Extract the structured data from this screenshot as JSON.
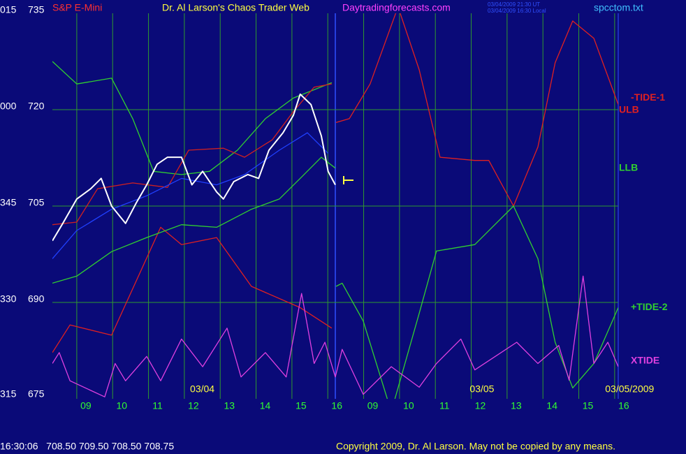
{
  "chart_data": {
    "type": "line",
    "title": "S&P E-Mini",
    "subtitle": "Dr. Al Larson's Chaos Trader Web",
    "site": "Daytradingforecasts.com",
    "timestamps": [
      "03/04/2009 21:30 UT",
      "03/04/2009 16:30 Local"
    ],
    "filename": "spcctom.txt",
    "date_labels": [
      {
        "value": 3.5,
        "label": "03/04"
      },
      {
        "value": 11.3,
        "label": "03/05"
      },
      {
        "value": 16.1,
        "label": "03/05/2009"
      }
    ],
    "status": "16:30:06   708.50 709.50 708.50 708.75",
    "copyright": "Copyright 2009, Dr. Al Larson. May not be copied by any means.",
    "ylim": [
      675,
      735
    ],
    "yticks": [
      735,
      720,
      705,
      690,
      675
    ],
    "yticks_outer": [
      "015",
      "000",
      "345",
      "330",
      "315"
    ],
    "xlim": [
      -0.68,
      15.1
    ],
    "xticks": [
      {
        "value": 0,
        "label": "09"
      },
      {
        "value": 1,
        "label": "10"
      },
      {
        "value": 2,
        "label": "11"
      },
      {
        "value": 3,
        "label": "12"
      },
      {
        "value": 4,
        "label": "13"
      },
      {
        "value": 5,
        "label": "14"
      },
      {
        "value": 6,
        "label": "15"
      },
      {
        "value": 7,
        "label": "16"
      },
      {
        "value": 8,
        "label": "09"
      },
      {
        "value": 9,
        "label": "10"
      },
      {
        "value": 10,
        "label": "11"
      },
      {
        "value": 11,
        "label": "12"
      },
      {
        "value": 12,
        "label": "13"
      },
      {
        "value": 13,
        "label": "14"
      },
      {
        "value": 14,
        "label": "15"
      },
      {
        "value": 15,
        "label": "16"
      }
    ],
    "grid": true,
    "right_labels": [
      {
        "label": "-TIDE-1",
        "color": "#e02020",
        "value": 721.8
      },
      {
        "label": "ULB",
        "color": "#e02020",
        "value": 719.9
      },
      {
        "label": "LLB",
        "color": "#30d030",
        "value": 710.9
      },
      {
        "label": "+TIDE-2",
        "color": "#30d030",
        "value": 689.2
      },
      {
        "label": "XTIDE",
        "color": "#e040e0",
        "value": 680.9
      }
    ],
    "series": [
      {
        "color": "#e02020",
        "x": [
          -0.68,
          -0.19,
          0.97,
          2.34,
          2.92,
          3.9,
          4.87,
          6.23,
          7.11
        ],
        "values": [
          682.2,
          686.5,
          684.9,
          701.7,
          699.0,
          700.1,
          692.5,
          689.2,
          686.0
        ]
      },
      {
        "color": "#30d030",
        "x": [
          -0.68,
          0,
          0.97,
          1.56,
          2.14,
          2.92,
          3.7,
          4.48,
          5.26,
          6.04,
          7.11
        ],
        "values": [
          727.5,
          724.0,
          724.9,
          718.6,
          710.4,
          709.9,
          710.4,
          713.7,
          718.6,
          721.8,
          724.2
        ]
      },
      {
        "color": "#d02020",
        "x": [
          -0.68,
          0,
          0.58,
          1.56,
          2.53,
          3.12,
          4.09,
          4.68,
          5.45,
          6.04,
          6.62,
          7.11
        ],
        "values": [
          702.1,
          702.5,
          707.7,
          708.6,
          707.9,
          713.7,
          714.0,
          712.6,
          715.3,
          719.7,
          723.5,
          724.0
        ]
      },
      {
        "color": "#30d030",
        "x": [
          -0.68,
          0,
          0.97,
          1.95,
          2.92,
          3.9,
          4.87,
          5.65,
          6.23,
          6.82,
          7.21
        ],
        "values": [
          693.0,
          694.1,
          697.9,
          700.1,
          702.1,
          701.7,
          704.5,
          706.1,
          709.3,
          712.6,
          710.9
        ]
      },
      {
        "color": "#2040ff",
        "x": [
          -0.68,
          0,
          0.97,
          1.95,
          2.92,
          3.9,
          4.68,
          5.65,
          6.43,
          7.01
        ],
        "values": [
          696.8,
          701.2,
          704.5,
          706.6,
          709.3,
          708.3,
          709.9,
          713.7,
          716.4,
          713.2
        ]
      },
      {
        "color": "#ffffff",
        "x": [
          -0.68,
          -0.39,
          0,
          0.39,
          0.68,
          0.97,
          1.36,
          1.66,
          1.95,
          2.24,
          2.53,
          2.92,
          3.21,
          3.51,
          3.9,
          4.09,
          4.38,
          4.77,
          5.07,
          5.36,
          5.75,
          6.04,
          6.23,
          6.53,
          6.82,
          7.01,
          7.21
        ],
        "values": [
          699.6,
          702.3,
          706.1,
          707.7,
          709.3,
          705.0,
          702.3,
          705.5,
          708.3,
          711.5,
          712.6,
          712.6,
          708.3,
          710.4,
          707.2,
          706.1,
          708.8,
          709.9,
          709.3,
          713.7,
          716.4,
          719.1,
          722.4,
          720.8,
          715.9,
          710.4,
          708.3
        ]
      },
      {
        "name": "-TIDE-1",
        "color": "#e02020",
        "x": [
          7.23,
          7.6,
          8.18,
          8.96,
          9.55,
          10.13,
          11.1,
          11.49,
          12.18,
          12.86,
          13.34,
          13.83,
          14.42,
          15.1
        ],
        "values": [
          718.0,
          718.6,
          724.0,
          736.0,
          726.2,
          712.6,
          712.1,
          712.1,
          705.0,
          714.2,
          727.3,
          733.8,
          731.1,
          720.8
        ]
      },
      {
        "name": "+TIDE-2",
        "color": "#30d030",
        "x": [
          7.23,
          7.4,
          7.99,
          8.77,
          9.55,
          10.03,
          11.1,
          12.18,
          12.86,
          13.34,
          13.83,
          14.42,
          15.1
        ],
        "values": [
          692.5,
          693.0,
          687.1,
          673.0,
          688.3,
          698.0,
          699.0,
          705.0,
          696.8,
          683.8,
          676.7,
          680.5,
          689.2
        ]
      },
      {
        "name": "XTIDE",
        "color": "#e040e0",
        "x": [
          -0.68,
          -0.49,
          -0.19,
          0.78,
          1.07,
          1.36,
          1.95,
          2.34,
          2.92,
          3.51,
          4.19,
          4.58,
          5.26,
          5.84,
          6.27,
          6.62,
          6.92,
          7.21,
          7.4,
          7.99,
          8.77,
          9.55,
          10.03,
          10.71,
          11.1,
          12.27,
          12.86,
          13.44,
          13.73,
          14.12,
          14.42,
          14.81,
          15.1
        ],
        "values": [
          680.5,
          682.2,
          677.8,
          675.3,
          680.5,
          677.8,
          681.6,
          677.8,
          684.3,
          680.0,
          686.0,
          678.4,
          682.2,
          678.4,
          691.4,
          680.5,
          683.8,
          678.4,
          682.7,
          675.7,
          680.0,
          676.8,
          680.5,
          684.3,
          679.5,
          683.8,
          680.5,
          683.3,
          677.9,
          694.1,
          680.5,
          683.8,
          680.0
        ]
      }
    ]
  }
}
